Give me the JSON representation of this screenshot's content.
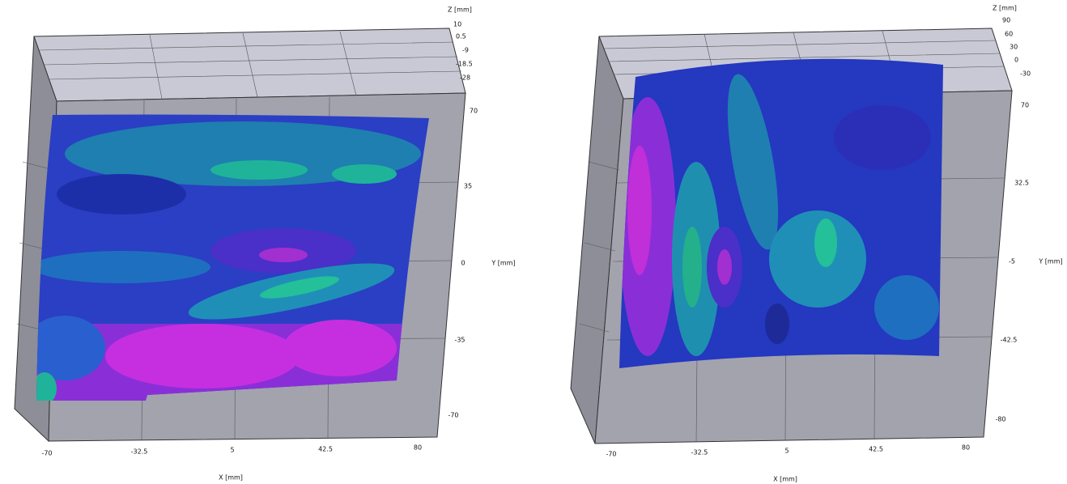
{
  "panels": [
    {
      "z_axis": {
        "label": "Z [mm]",
        "ticks": [
          "10",
          "0.5",
          "-9",
          "-18.5",
          "-28"
        ]
      },
      "y_axis": {
        "label": "Y [mm]",
        "ticks": [
          "70",
          "35",
          "0",
          "-35",
          "-70"
        ]
      },
      "x_axis": {
        "label": "X [mm]",
        "ticks": [
          "-70",
          "-32.5",
          "5",
          "42.5",
          "80"
        ]
      }
    },
    {
      "z_axis": {
        "label": "Z [mm]",
        "ticks": [
          "90",
          "60",
          "30",
          "0",
          "-30"
        ]
      },
      "y_axis": {
        "label": "Y [mm]",
        "ticks": [
          "70",
          "32.5",
          "-5",
          "-42.5",
          "-80"
        ]
      },
      "x_axis": {
        "label": "X [mm]",
        "ticks": [
          "-70",
          "-32.5",
          "5",
          "42.5",
          "80"
        ]
      }
    }
  ]
}
